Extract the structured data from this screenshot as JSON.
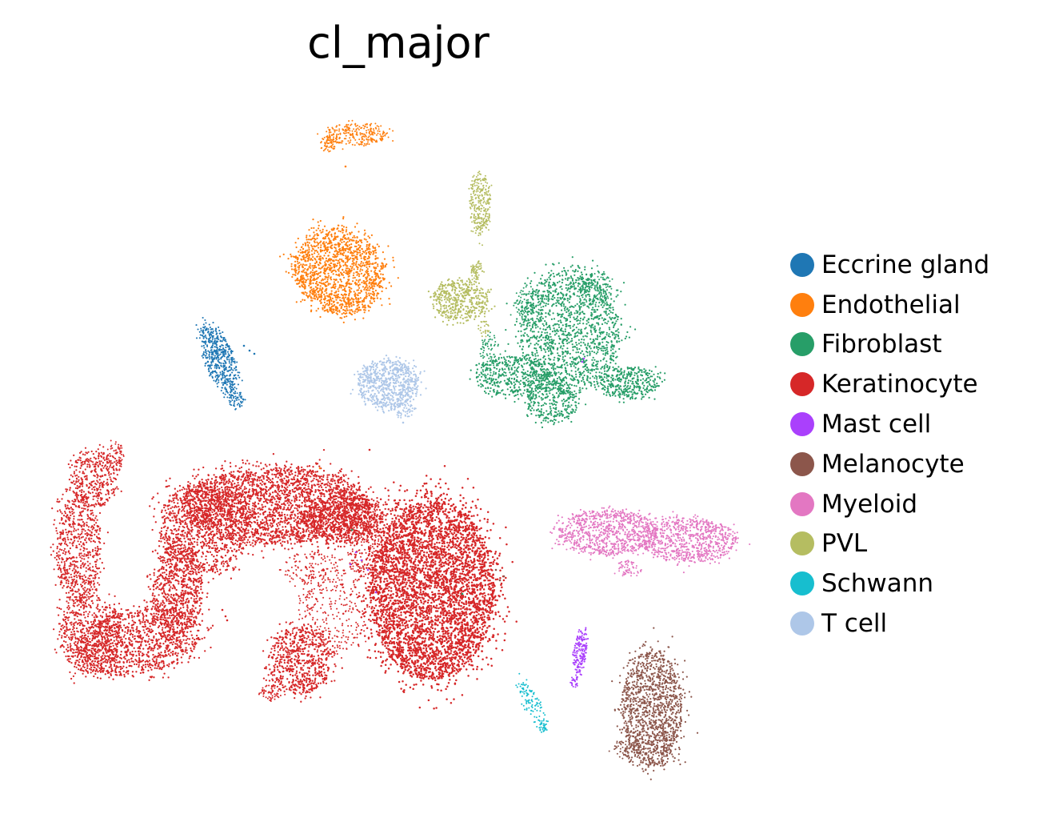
{
  "chart_data": {
    "type": "scatter",
    "title": "cl_major",
    "xlabel": "",
    "ylabel": "",
    "axes_visible": false,
    "grid": false,
    "legend_placement": "right",
    "legend_marker": "circle",
    "series": [
      {
        "name": "Eccrine gland",
        "color": "#1f77b4"
      },
      {
        "name": "Endothelial",
        "color": "#ff7f0e"
      },
      {
        "name": "Fibroblast",
        "color": "#279e68"
      },
      {
        "name": "Keratinocyte",
        "color": "#d62728"
      },
      {
        "name": "Mast cell",
        "color": "#aa40fc"
      },
      {
        "name": "Melanocyte",
        "color": "#8c564b"
      },
      {
        "name": "Myeloid",
        "color": "#e377c2"
      },
      {
        "name": "PVL",
        "color": "#b5bd61"
      },
      {
        "name": "Schwann",
        "color": "#17becf"
      },
      {
        "name": "T cell",
        "color": "#aec7e8"
      }
    ]
  }
}
